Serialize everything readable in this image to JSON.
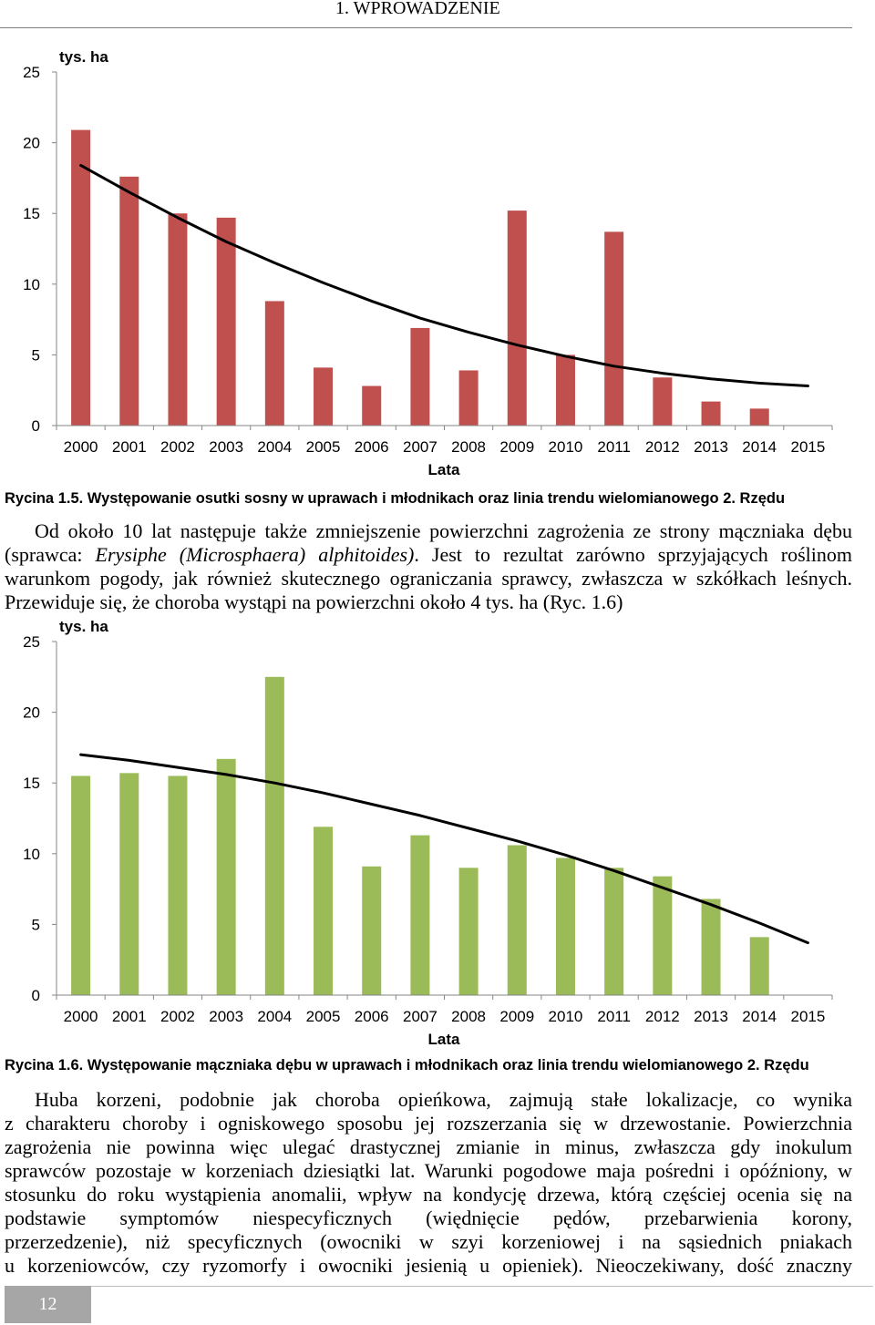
{
  "header": {
    "section": "1. WPROWADZENIE"
  },
  "chart_data": [
    {
      "type": "bar",
      "categories": [
        "2000",
        "2001",
        "2002",
        "2003",
        "2004",
        "2005",
        "2006",
        "2007",
        "2008",
        "2009",
        "2010",
        "2011",
        "2012",
        "2013",
        "2014",
        "2015"
      ],
      "values": [
        20.9,
        17.6,
        15.0,
        14.7,
        8.8,
        4.1,
        2.8,
        6.9,
        3.9,
        15.2,
        5.0,
        13.7,
        3.4,
        1.7,
        1.2,
        null
      ],
      "trend_values": [
        18.4,
        16.5,
        14.7,
        13.0,
        11.5,
        10.1,
        8.8,
        7.6,
        6.6,
        5.7,
        4.9,
        4.2,
        3.7,
        3.3,
        3.0,
        2.8
      ],
      "ylabel": "tys. ha",
      "xlabel": "Lata",
      "ylim": [
        0,
        25
      ],
      "yticks": [
        0,
        5,
        10,
        15,
        20,
        25
      ],
      "grid": false,
      "color": "#c0504d",
      "trend_color": "#000000",
      "caption": "Rycina 1.5. Występowanie osutki sosny w uprawach i młodnikach oraz linia trendu wielomianowego 2. Rzędu"
    },
    {
      "type": "bar",
      "categories": [
        "2000",
        "2001",
        "2002",
        "2003",
        "2004",
        "2005",
        "2006",
        "2007",
        "2008",
        "2009",
        "2010",
        "2011",
        "2012",
        "2013",
        "2014",
        "2015"
      ],
      "values": [
        15.5,
        15.7,
        15.5,
        16.7,
        22.5,
        11.9,
        9.1,
        11.3,
        9.0,
        10.6,
        9.7,
        9.0,
        8.4,
        6.8,
        4.1,
        null
      ],
      "trend_values": [
        17.0,
        16.6,
        16.1,
        15.6,
        15.0,
        14.3,
        13.5,
        12.7,
        11.8,
        10.9,
        9.9,
        8.8,
        7.6,
        6.4,
        5.1,
        3.7
      ],
      "ylabel": "tys. ha",
      "xlabel": "Lata",
      "ylim": [
        0,
        25
      ],
      "yticks": [
        0,
        5,
        10,
        15,
        20,
        25
      ],
      "grid": false,
      "color": "#9bbb59",
      "trend_color": "#000000",
      "caption": "Rycina 1.6. Występowanie mączniaka dębu w uprawach i młodnikach oraz linia trendu wielomianowego 2. Rzędu"
    }
  ],
  "paragraph1": {
    "lines": [
      "Od około 10 lat następuje także zmniejszenie powierzchni zagrożenia ze strony mączniaka dębu",
      {
        "before": "(sprawca: ",
        "italic": "Erysiphe (Microsphaera) alphitoides)",
        "after": ". Jest to rezultat zarówno sprzyjających roślinom"
      },
      "warunkom pogody, jak również skutecznego ograniczania sprawcy, zwłaszcza w szkółkach leśnych.",
      "Przewiduje się, że choroba wystąpi na powierzchni około 4 tys. ha (Ryc. 1.6)"
    ]
  },
  "paragraph2": {
    "lines": [
      "Huba korzeni, podobnie jak choroba opieńkowa, zajmują stałe lokalizacje, co wynika",
      "z charakteru choroby i ogniskowego sposobu jej rozszerzania się w drzewostanie. Powierzchnia",
      "zagrożenia nie powinna więc ulegać drastycznej zmianie in minus, zwłaszcza gdy inokulum",
      "sprawców pozostaje w korzeniach dziesiątki lat. Warunki pogodowe maja pośredni i opóźniony, w",
      "stosunku do roku wystąpienia anomalii, wpływ na kondycję drzewa, którą częściej ocenia się na",
      "podstawie symptomów niespecyficznych (więdnięcie pędów, przebarwienia korony,",
      "przerzedzenie), niż specyficznych (owocniki w szyi korzeniowej i na sąsiednich pniakach",
      "u korzeniowców, czy ryzomorfy i owocniki jesienią u opieniek). Nieoczekiwany, dość znaczny"
    ]
  },
  "footer": {
    "page_number": "12"
  }
}
